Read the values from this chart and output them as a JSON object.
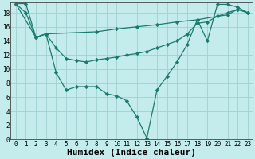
{
  "line1_x": [
    0,
    1,
    2,
    3,
    4,
    5,
    6,
    7,
    8,
    9,
    10,
    11,
    12,
    13,
    14,
    15,
    16,
    17,
    18,
    19,
    20,
    21,
    22,
    23
  ],
  "line1_y": [
    19.3,
    18.0,
    14.5,
    15.0,
    9.5,
    7.0,
    7.5,
    7.5,
    7.5,
    6.5,
    6.2,
    5.5,
    3.2,
    0.2,
    7.0,
    9.0,
    11.0,
    13.5,
    17.0,
    14.0,
    19.2,
    19.2,
    18.8,
    18.0
  ],
  "line2_x": [
    0,
    1,
    2,
    3,
    4,
    5,
    6,
    7,
    8,
    9,
    10,
    11,
    12,
    13,
    14,
    15,
    16,
    17,
    18,
    19,
    20,
    21,
    22,
    23
  ],
  "line2_y": [
    19.3,
    19.3,
    14.5,
    15.0,
    13.0,
    11.5,
    11.2,
    11.0,
    11.3,
    11.5,
    11.7,
    12.0,
    12.2,
    12.5,
    13.0,
    13.5,
    14.0,
    15.0,
    16.5,
    16.7,
    17.5,
    18.0,
    18.5,
    18.0
  ],
  "line3_x": [
    0,
    2,
    3,
    8,
    10,
    12,
    14,
    16,
    18,
    20,
    21,
    22,
    23
  ],
  "line3_y": [
    19.3,
    14.5,
    15.0,
    15.3,
    15.7,
    16.0,
    16.3,
    16.7,
    17.0,
    17.5,
    17.7,
    18.5,
    18.0
  ],
  "color": "#1a7a6e",
  "bg_color": "#c5ecec",
  "grid_color": "#a0d0d0",
  "xlabel": "Humidex (Indice chaleur)",
  "xlim": [
    -0.5,
    23.5
  ],
  "ylim": [
    0,
    19.5
  ],
  "xticks": [
    0,
    1,
    2,
    3,
    4,
    5,
    6,
    7,
    8,
    9,
    10,
    11,
    12,
    13,
    14,
    15,
    16,
    17,
    18,
    19,
    20,
    21,
    22,
    23
  ],
  "yticks": [
    0,
    2,
    4,
    6,
    8,
    10,
    12,
    14,
    16,
    18
  ],
  "marker": "D",
  "markersize": 2.2,
  "linewidth": 0.9,
  "xlabel_fontsize": 8,
  "tick_fontsize": 5.5
}
